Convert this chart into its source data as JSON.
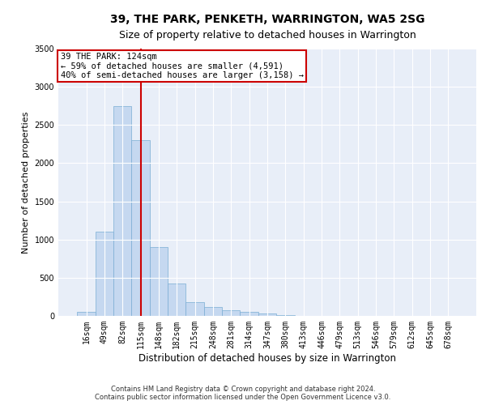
{
  "title": "39, THE PARK, PENKETH, WARRINGTON, WA5 2SG",
  "subtitle": "Size of property relative to detached houses in Warrington",
  "xlabel": "Distribution of detached houses by size in Warrington",
  "ylabel": "Number of detached properties",
  "footer_line1": "Contains HM Land Registry data © Crown copyright and database right 2024.",
  "footer_line2": "Contains public sector information licensed under the Open Government Licence v3.0.",
  "annotation_line1": "39 THE PARK: 124sqm",
  "annotation_line2": "← 59% of detached houses are smaller (4,591)",
  "annotation_line3": "40% of semi-detached houses are larger (3,158) →",
  "bar_color": "#c5d8f0",
  "bar_edge_color": "#7aadd4",
  "vline_color": "#cc0000",
  "annotation_box_color": "#cc0000",
  "background_color": "#ffffff",
  "plot_bg_color": "#e8eef8",
  "grid_color": "#ffffff",
  "categories": [
    "16sqm",
    "49sqm",
    "82sqm",
    "115sqm",
    "148sqm",
    "182sqm",
    "215sqm",
    "248sqm",
    "281sqm",
    "314sqm",
    "347sqm",
    "380sqm",
    "413sqm",
    "446sqm",
    "479sqm",
    "513sqm",
    "546sqm",
    "579sqm",
    "612sqm",
    "645sqm",
    "678sqm"
  ],
  "values": [
    50,
    1100,
    2750,
    2300,
    900,
    420,
    180,
    120,
    70,
    50,
    30,
    15,
    5,
    0,
    0,
    0,
    0,
    0,
    0,
    0,
    0
  ],
  "ylim": [
    0,
    3500
  ],
  "yticks": [
    0,
    500,
    1000,
    1500,
    2000,
    2500,
    3000,
    3500
  ],
  "vline_x": 3.0,
  "title_fontsize": 10,
  "subtitle_fontsize": 9,
  "xlabel_fontsize": 8.5,
  "ylabel_fontsize": 8,
  "tick_fontsize": 7,
  "annotation_fontsize": 7.5,
  "footer_fontsize": 6
}
